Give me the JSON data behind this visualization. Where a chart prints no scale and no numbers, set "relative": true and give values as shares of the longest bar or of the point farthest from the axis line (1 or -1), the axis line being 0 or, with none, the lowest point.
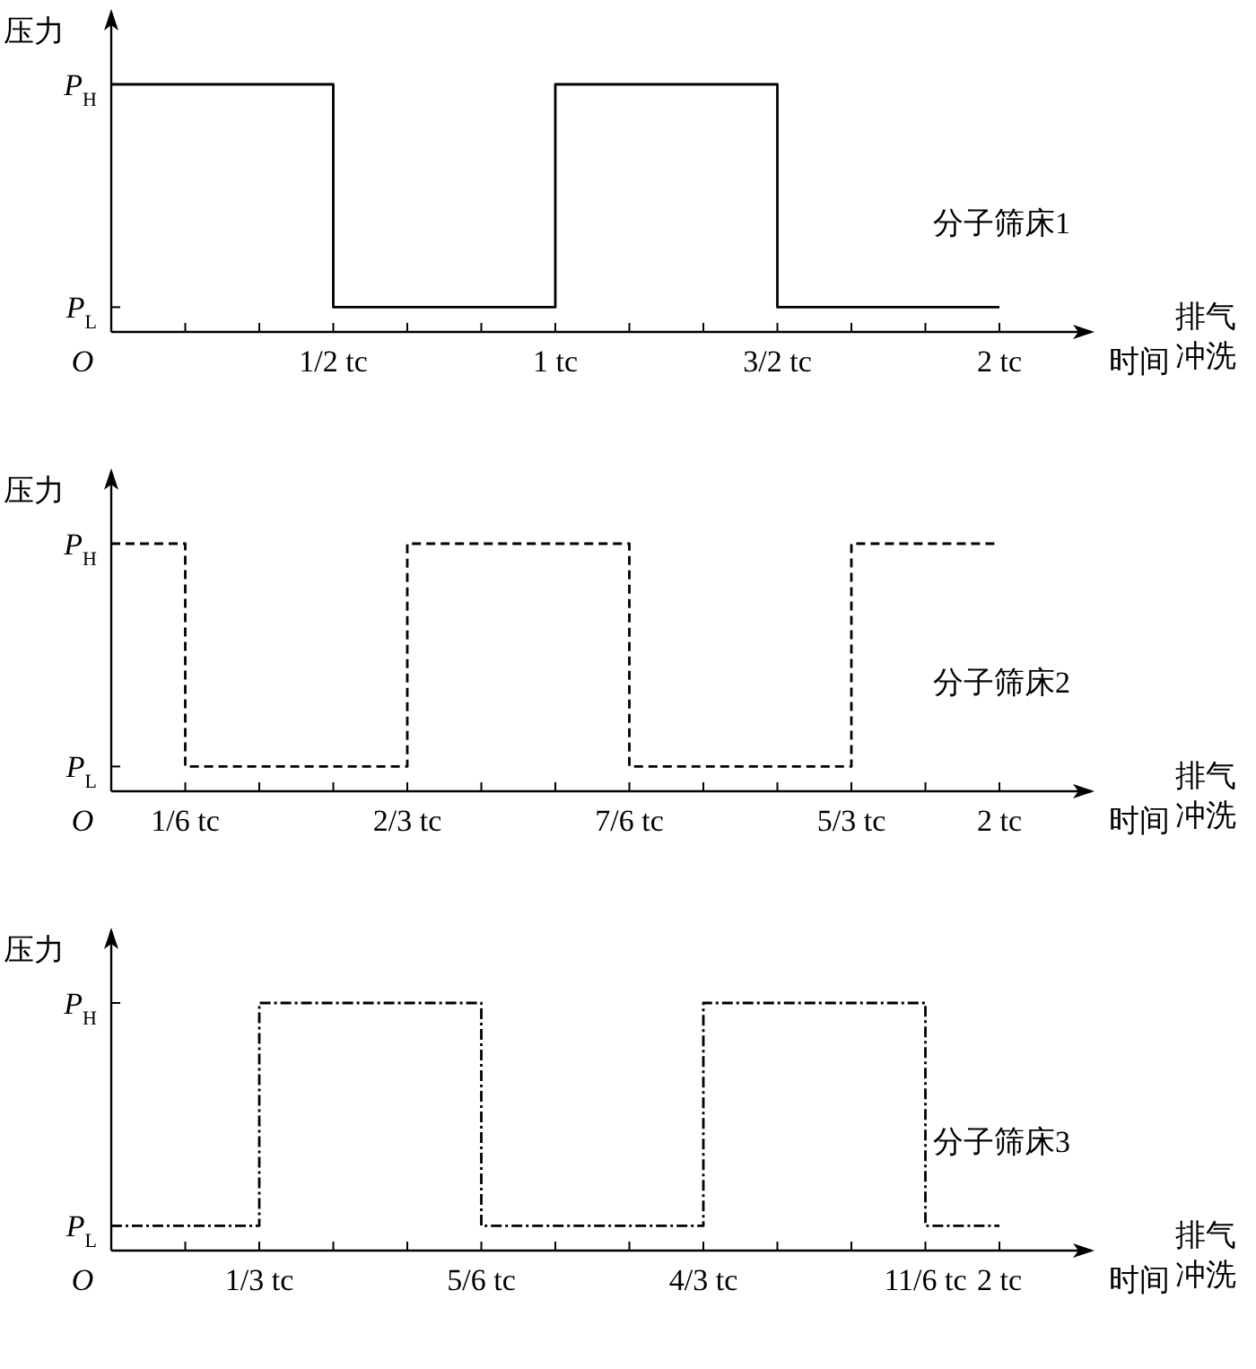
{
  "chart_data": [
    {
      "type": "step",
      "relative": true,
      "ylabel": "压力",
      "xlabel": "时间",
      "annotations": [
        "O",
        "P$_{H}$",
        "P$_{L}$",
        "排气冲洗"
      ],
      "categories": [
        null,
        null,
        null,
        "1/2 tc",
        null,
        null,
        "1 tc",
        null,
        null,
        "3/2 tc",
        null,
        null,
        "2 tc"
      ],
      "series": [
        {
          "name": "分子筛床1",
          "color": "#000000",
          "line_style": "solid",
          "values": [
            1,
            1,
            1,
            0.1,
            0.1,
            0.1,
            1,
            1,
            1,
            0.1,
            0.1,
            0.1,
            0.1
          ]
        }
      ],
      "grid": false
    },
    {
      "type": "step",
      "relative": true,
      "ylabel": "压力",
      "xlabel": "时间",
      "annotations": [
        "O",
        "P$_{H}$",
        "P$_{L}$",
        "排气冲洗"
      ],
      "categories": [
        null,
        "1/6 tc",
        null,
        null,
        "2/3 tc",
        null,
        null,
        "7/6 tc",
        null,
        null,
        "5/3 tc",
        null,
        "2 tc"
      ],
      "series": [
        {
          "name": "分子筛床2",
          "color": "#000000",
          "line_style": "dashed",
          "values": [
            1,
            0.1,
            0.1,
            0.1,
            1,
            1,
            1,
            0.1,
            0.1,
            0.1,
            1,
            1,
            1
          ]
        }
      ],
      "grid": false
    },
    {
      "type": "step",
      "relative": true,
      "ylabel": "压力",
      "xlabel": "时间",
      "annotations": [
        "O",
        "P$_{H}$",
        "P$_{L}$",
        "排气冲洗"
      ],
      "categories": [
        null,
        null,
        "1/3 tc",
        null,
        null,
        "5/6 tc",
        null,
        null,
        "4/3 tc",
        null,
        null,
        "11/6 tc",
        "2 tc"
      ],
      "series": [
        {
          "name": "分子筛床3",
          "color": "#000000",
          "line_style": "dashdot",
          "values": [
            0.1,
            0.1,
            1,
            1,
            1,
            0.1,
            0.1,
            0.1,
            1,
            1,
            1,
            0.1,
            0.1
          ]
        }
      ],
      "grid": false
    }
  ]
}
